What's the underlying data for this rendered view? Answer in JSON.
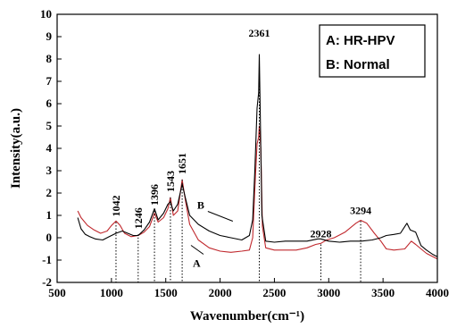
{
  "chart_data": {
    "type": "line",
    "xlabel": "Wavenumber(cm⁻¹)",
    "ylabel": "Intensity(a.u.)",
    "xlim": [
      500,
      4000
    ],
    "ylim": [
      -2,
      10
    ],
    "xticks": [
      500,
      1000,
      1500,
      2000,
      2500,
      3000,
      3500,
      4000
    ],
    "yticks": [
      -2,
      -1,
      0,
      1,
      2,
      3,
      4,
      5,
      6,
      7,
      8,
      9,
      10
    ],
    "grid": false,
    "legend": {
      "position": "top-right",
      "entries": [
        "A: HR-HPV",
        "B: Normal"
      ]
    },
    "series_labels": [
      {
        "text": "B",
        "x": 1920,
        "y": 1.3
      },
      {
        "text": "A",
        "x": 1880,
        "y": -1.3
      }
    ],
    "peak_labels": [
      {
        "text": "1042",
        "x": 1042,
        "y_top": 0.7
      },
      {
        "text": "1246",
        "x": 1246,
        "y_top": 0.15
      },
      {
        "text": "1396",
        "x": 1396,
        "y_top": 1.2
      },
      {
        "text": "1543",
        "x": 1543,
        "y_top": 1.8
      },
      {
        "text": "1651",
        "x": 1651,
        "y_top": 2.6
      },
      {
        "text": "2361",
        "x": 2361,
        "y_top": 8.2
      },
      {
        "text": "2928",
        "x": 2928,
        "y_top": -0.3
      },
      {
        "text": "3294",
        "x": 3294,
        "y_top": 0.75
      }
    ],
    "series": [
      {
        "name": "A: HR-HPV",
        "color": "#c0282d",
        "points": [
          [
            690,
            1.2
          ],
          [
            720,
            0.9
          ],
          [
            780,
            0.55
          ],
          [
            840,
            0.35
          ],
          [
            900,
            0.2
          ],
          [
            960,
            0.3
          ],
          [
            1000,
            0.55
          ],
          [
            1042,
            0.75
          ],
          [
            1080,
            0.55
          ],
          [
            1120,
            0.2
          ],
          [
            1180,
            0.05
          ],
          [
            1246,
            0.1
          ],
          [
            1300,
            0.25
          ],
          [
            1350,
            0.5
          ],
          [
            1396,
            1.1
          ],
          [
            1430,
            0.7
          ],
          [
            1480,
            0.9
          ],
          [
            1520,
            1.3
          ],
          [
            1543,
            1.8
          ],
          [
            1570,
            1.0
          ],
          [
            1610,
            1.2
          ],
          [
            1651,
            2.6
          ],
          [
            1680,
            1.7
          ],
          [
            1720,
            0.6
          ],
          [
            1800,
            -0.1
          ],
          [
            1900,
            -0.45
          ],
          [
            2000,
            -0.6
          ],
          [
            2100,
            -0.65
          ],
          [
            2200,
            -0.6
          ],
          [
            2270,
            -0.55
          ],
          [
            2300,
            0.0
          ],
          [
            2320,
            2.2
          ],
          [
            2340,
            4.2
          ],
          [
            2355,
            4.5
          ],
          [
            2361,
            5.0
          ],
          [
            2375,
            4.0
          ],
          [
            2390,
            0.5
          ],
          [
            2420,
            -0.45
          ],
          [
            2500,
            -0.55
          ],
          [
            2600,
            -0.55
          ],
          [
            2700,
            -0.55
          ],
          [
            2800,
            -0.45
          ],
          [
            2880,
            -0.3
          ],
          [
            2928,
            -0.25
          ],
          [
            2980,
            -0.1
          ],
          [
            3050,
            0.0
          ],
          [
            3150,
            0.25
          ],
          [
            3250,
            0.65
          ],
          [
            3294,
            0.78
          ],
          [
            3350,
            0.65
          ],
          [
            3420,
            0.2
          ],
          [
            3480,
            -0.15
          ],
          [
            3530,
            -0.5
          ],
          [
            3600,
            -0.55
          ],
          [
            3700,
            -0.5
          ],
          [
            3760,
            -0.15
          ],
          [
            3800,
            -0.3
          ],
          [
            3850,
            -0.5
          ],
          [
            3900,
            -0.7
          ],
          [
            3960,
            -0.85
          ],
          [
            4000,
            -0.95
          ]
        ]
      },
      {
        "name": "B: Normal",
        "color": "#000000",
        "points": [
          [
            690,
            0.9
          ],
          [
            720,
            0.4
          ],
          [
            760,
            0.15
          ],
          [
            800,
            0.05
          ],
          [
            850,
            -0.05
          ],
          [
            920,
            -0.1
          ],
          [
            980,
            0.05
          ],
          [
            1042,
            0.2
          ],
          [
            1100,
            0.3
          ],
          [
            1150,
            0.2
          ],
          [
            1200,
            0.1
          ],
          [
            1246,
            0.1
          ],
          [
            1300,
            0.35
          ],
          [
            1350,
            0.7
          ],
          [
            1396,
            1.3
          ],
          [
            1430,
            0.8
          ],
          [
            1480,
            1.1
          ],
          [
            1520,
            1.5
          ],
          [
            1543,
            1.6
          ],
          [
            1570,
            1.2
          ],
          [
            1610,
            1.5
          ],
          [
            1651,
            2.4
          ],
          [
            1680,
            1.8
          ],
          [
            1720,
            1.0
          ],
          [
            1800,
            0.6
          ],
          [
            1900,
            0.3
          ],
          [
            2000,
            0.1
          ],
          [
            2100,
            0.0
          ],
          [
            2200,
            -0.1
          ],
          [
            2270,
            0.1
          ],
          [
            2300,
            0.8
          ],
          [
            2320,
            3.0
          ],
          [
            2340,
            5.8
          ],
          [
            2355,
            6.5
          ],
          [
            2361,
            8.2
          ],
          [
            2370,
            5.5
          ],
          [
            2385,
            1.0
          ],
          [
            2420,
            -0.15
          ],
          [
            2500,
            -0.2
          ],
          [
            2600,
            -0.15
          ],
          [
            2700,
            -0.15
          ],
          [
            2800,
            -0.15
          ],
          [
            2900,
            -0.05
          ],
          [
            2928,
            -0.05
          ],
          [
            3000,
            -0.15
          ],
          [
            3100,
            -0.2
          ],
          [
            3200,
            -0.15
          ],
          [
            3300,
            -0.15
          ],
          [
            3400,
            -0.1
          ],
          [
            3480,
            0.0
          ],
          [
            3530,
            0.1
          ],
          [
            3600,
            0.15
          ],
          [
            3660,
            0.2
          ],
          [
            3720,
            0.65
          ],
          [
            3750,
            0.35
          ],
          [
            3800,
            0.25
          ],
          [
            3850,
            -0.35
          ],
          [
            3900,
            -0.55
          ],
          [
            3960,
            -0.75
          ],
          [
            4000,
            -0.85
          ]
        ]
      }
    ]
  }
}
